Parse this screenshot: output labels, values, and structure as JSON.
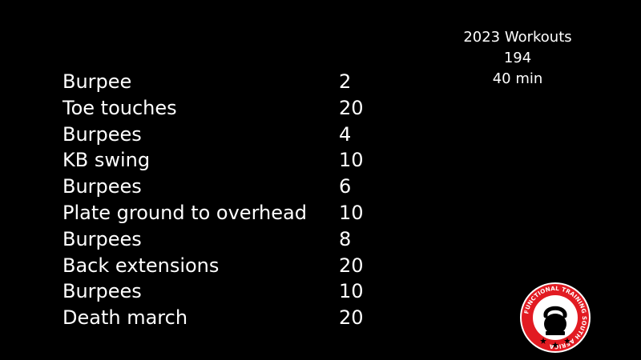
{
  "info": {
    "line1": "2023 Workouts",
    "line2": "194",
    "line3": "40 min"
  },
  "workout": {
    "rows": [
      {
        "exercise": "Burpee",
        "reps": "2"
      },
      {
        "exercise": "Toe touches",
        "reps": "20"
      },
      {
        "exercise": "Burpees",
        "reps": "4"
      },
      {
        "exercise": "KB swing",
        "reps": "10"
      },
      {
        "exercise": "Burpees",
        "reps": "6"
      },
      {
        "exercise": "Plate ground to overhead",
        "reps": "10"
      },
      {
        "exercise": "Burpees",
        "reps": "8"
      },
      {
        "exercise": "Back extensions",
        "reps": "20"
      },
      {
        "exercise": "Burpees",
        "reps": "10"
      },
      {
        "exercise": "Death march",
        "reps": "20"
      }
    ]
  },
  "logo": {
    "text": "FUNCTIONAL TRAINING SOUTH AFRICA",
    "icon": "kettlebell-icon",
    "colors": {
      "ring": "#e21b22",
      "inner": "#ffffff",
      "kettlebell": "#000000"
    }
  }
}
